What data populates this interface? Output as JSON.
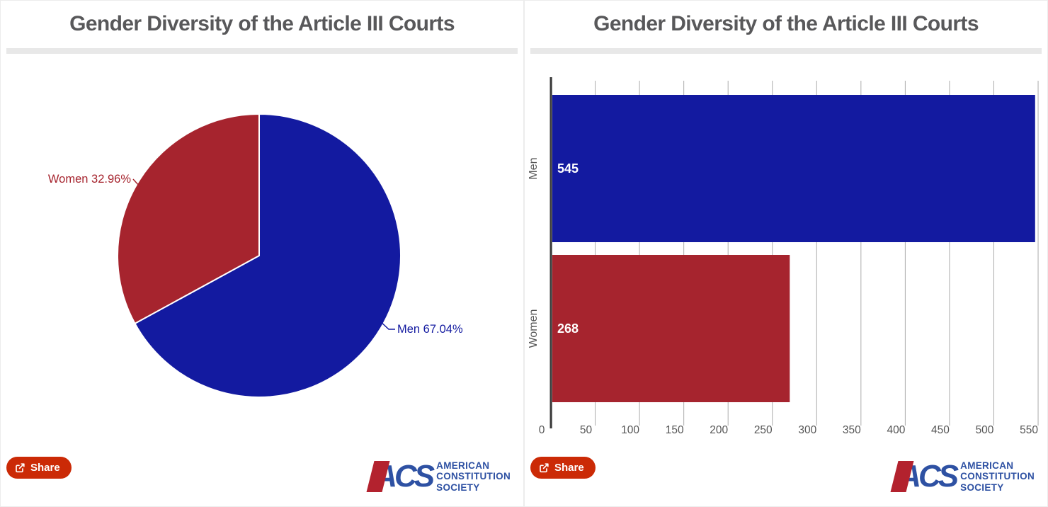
{
  "panels": [
    {
      "title": "Gender Diversity of the Article III Courts",
      "share_label": "Share",
      "logo": {
        "acronym": "ACS",
        "lines": [
          "AMERICAN",
          "CONSTITUTION",
          "SOCIETY"
        ]
      }
    },
    {
      "title": "Gender Diversity of the Article III Courts",
      "share_label": "Share",
      "logo": {
        "acronym": "ACS",
        "lines": [
          "AMERICAN",
          "CONSTITUTION",
          "SOCIETY"
        ]
      }
    }
  ],
  "colors": {
    "men_blue": "#131aa0",
    "women_red": "#a6242e",
    "share_button_red": "#cb2a06",
    "logo_blue": "#2e51a3",
    "logo_red": "#b3222e",
    "title_gray": "#58585a",
    "axis_text_gray": "#555555",
    "gridline_gray": "#ababab"
  },
  "chart_data": [
    {
      "type": "pie",
      "title": "Gender Diversity of the Article III Courts",
      "start_angle": "12 o'clock, clockwise",
      "slices": [
        {
          "label": "Men",
          "value_pct": 67.04,
          "label_text": "Men 67.04%",
          "color": "#131aa0"
        },
        {
          "label": "Women",
          "value_pct": 32.96,
          "label_text": "Women 32.96%",
          "color": "#a6242e"
        }
      ]
    },
    {
      "type": "bar",
      "orientation": "horizontal",
      "title": "Gender Diversity of the Article III Courts",
      "categories": [
        "Men",
        "Women"
      ],
      "values": [
        545,
        268
      ],
      "value_labels": [
        "545",
        "268"
      ],
      "colors": [
        "#131aa0",
        "#a6242e"
      ],
      "xlim": [
        0,
        550
      ],
      "xticks": [
        0,
        50,
        100,
        150,
        200,
        250,
        300,
        350,
        400,
        450,
        500,
        550
      ],
      "grid": true,
      "legend": "none"
    }
  ]
}
